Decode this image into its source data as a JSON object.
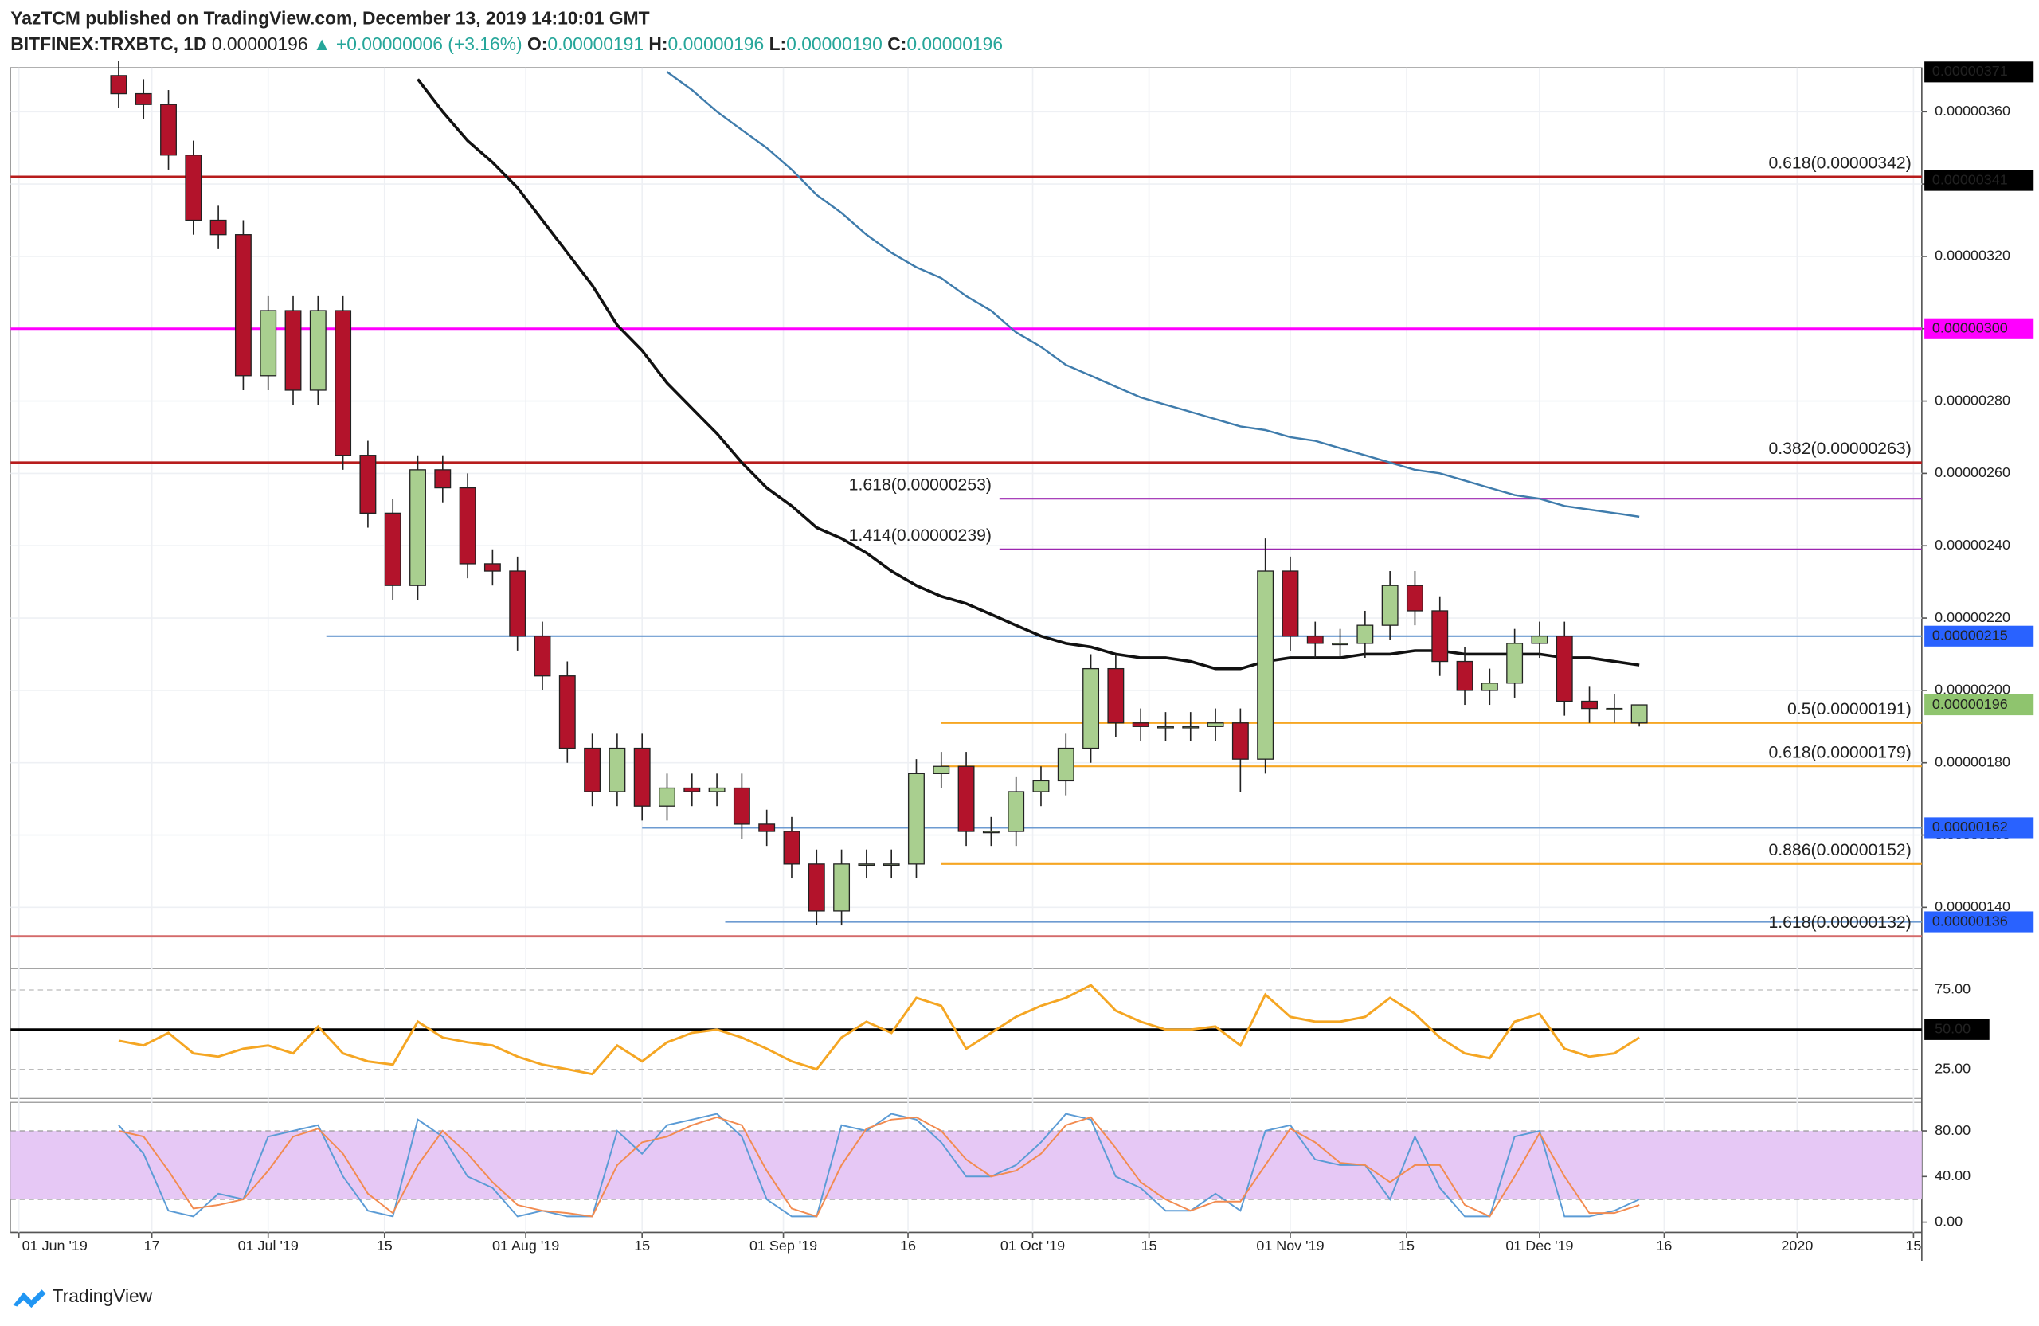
{
  "header": {
    "publisher": "YazTCM published on TradingView.com, December 13, 2019 14:10:01 GMT",
    "symbol": "BITFINEX:TRXBTC, 1D",
    "last": "0.00000196",
    "arrow": "▲",
    "change": "+0.00000006 (+3.16%)",
    "o_label": "O:",
    "o": "0.00000191",
    "h_label": "H:",
    "h": "0.00000196",
    "l_label": "L:",
    "l": "0.00000190",
    "c_label": "C:",
    "c": "0.00000196"
  },
  "footer": {
    "brand": "TradingView"
  },
  "chart_data": {
    "type": "candlestick",
    "up_color": "#a9cf8f",
    "down_color": "#b3132b",
    "x": [
      "2019-06-13",
      "2019-06-16",
      "2019-06-19",
      "2019-06-22",
      "2019-06-25",
      "2019-06-28",
      "2019-07-01",
      "2019-07-04",
      "2019-07-07",
      "2019-07-10",
      "2019-07-13",
      "2019-07-16",
      "2019-07-19",
      "2019-07-22",
      "2019-07-25",
      "2019-07-28",
      "2019-07-31",
      "2019-08-03",
      "2019-08-06",
      "2019-08-09",
      "2019-08-12",
      "2019-08-15",
      "2019-08-18",
      "2019-08-21",
      "2019-08-24",
      "2019-08-27",
      "2019-08-30",
      "2019-09-02",
      "2019-09-05",
      "2019-09-08",
      "2019-09-11",
      "2019-09-14",
      "2019-09-17",
      "2019-09-20",
      "2019-09-23",
      "2019-09-26",
      "2019-09-29",
      "2019-10-02",
      "2019-10-05",
      "2019-10-08",
      "2019-10-11",
      "2019-10-14",
      "2019-10-17",
      "2019-10-20",
      "2019-10-23",
      "2019-10-26",
      "2019-10-29",
      "2019-11-01",
      "2019-11-04",
      "2019-11-07",
      "2019-11-10",
      "2019-11-13",
      "2019-11-16",
      "2019-11-19",
      "2019-11-22",
      "2019-11-25",
      "2019-11-28",
      "2019-12-01",
      "2019-12-04",
      "2019-12-07",
      "2019-12-10",
      "2019-12-13"
    ],
    "open": [
      3.7e-06,
      3.65e-06,
      3.62e-06,
      3.48e-06,
      3.3e-06,
      3.26e-06,
      2.87e-06,
      3.05e-06,
      2.83e-06,
      3.05e-06,
      2.65e-06,
      2.49e-06,
      2.29e-06,
      2.61e-06,
      2.56e-06,
      2.35e-06,
      2.33e-06,
      2.15e-06,
      2.04e-06,
      1.84e-06,
      1.72e-06,
      1.84e-06,
      1.68e-06,
      1.73e-06,
      1.72e-06,
      1.73e-06,
      1.63e-06,
      1.61e-06,
      1.52e-06,
      1.39e-06,
      1.52e-06,
      1.52e-06,
      1.52e-06,
      1.77e-06,
      1.79e-06,
      1.61e-06,
      1.61e-06,
      1.72e-06,
      1.75e-06,
      1.84e-06,
      2.06e-06,
      1.91e-06,
      1.9e-06,
      1.9e-06,
      1.9e-06,
      1.91e-06,
      1.81e-06,
      2.33e-06,
      2.15e-06,
      2.13e-06,
      2.13e-06,
      2.18e-06,
      2.29e-06,
      2.22e-06,
      2.08e-06,
      2e-06,
      2.02e-06,
      2.13e-06,
      2.15e-06,
      1.97e-06,
      1.95e-06,
      1.91e-06
    ],
    "high": [
      3.74e-06,
      3.69e-06,
      3.66e-06,
      3.52e-06,
      3.34e-06,
      3.3e-06,
      3.09e-06,
      3.09e-06,
      3.09e-06,
      3.09e-06,
      2.69e-06,
      2.53e-06,
      2.65e-06,
      2.65e-06,
      2.6e-06,
      2.39e-06,
      2.37e-06,
      2.19e-06,
      2.08e-06,
      1.88e-06,
      1.88e-06,
      1.88e-06,
      1.77e-06,
      1.77e-06,
      1.77e-06,
      1.77e-06,
      1.67e-06,
      1.65e-06,
      1.56e-06,
      1.56e-06,
      1.56e-06,
      1.56e-06,
      1.81e-06,
      1.83e-06,
      1.83e-06,
      1.65e-06,
      1.76e-06,
      1.79e-06,
      1.88e-06,
      2.1e-06,
      2.1e-06,
      1.95e-06,
      1.94e-06,
      1.94e-06,
      1.95e-06,
      1.95e-06,
      2.42e-06,
      2.37e-06,
      2.19e-06,
      2.17e-06,
      2.22e-06,
      2.33e-06,
      2.33e-06,
      2.26e-06,
      2.12e-06,
      2.06e-06,
      2.17e-06,
      2.19e-06,
      2.19e-06,
      2.01e-06,
      1.99e-06,
      1.96e-06
    ],
    "low": [
      3.61e-06,
      3.58e-06,
      3.44e-06,
      3.26e-06,
      3.22e-06,
      2.83e-06,
      2.83e-06,
      2.79e-06,
      2.79e-06,
      2.61e-06,
      2.45e-06,
      2.25e-06,
      2.25e-06,
      2.52e-06,
      2.31e-06,
      2.29e-06,
      2.11e-06,
      2e-06,
      1.8e-06,
      1.68e-06,
      1.68e-06,
      1.64e-06,
      1.64e-06,
      1.68e-06,
      1.68e-06,
      1.59e-06,
      1.57e-06,
      1.48e-06,
      1.35e-06,
      1.35e-06,
      1.48e-06,
      1.48e-06,
      1.48e-06,
      1.73e-06,
      1.57e-06,
      1.57e-06,
      1.57e-06,
      1.68e-06,
      1.71e-06,
      1.8e-06,
      1.87e-06,
      1.86e-06,
      1.86e-06,
      1.86e-06,
      1.86e-06,
      1.72e-06,
      1.77e-06,
      2.11e-06,
      2.09e-06,
      2.09e-06,
      2.09e-06,
      2.14e-06,
      2.18e-06,
      2.04e-06,
      1.96e-06,
      1.96e-06,
      1.98e-06,
      2.09e-06,
      1.93e-06,
      1.91e-06,
      1.91e-06,
      1.9e-06
    ],
    "close": [
      3.65e-06,
      3.62e-06,
      3.48e-06,
      3.3e-06,
      3.26e-06,
      2.87e-06,
      3.05e-06,
      2.83e-06,
      3.05e-06,
      2.65e-06,
      2.49e-06,
      2.29e-06,
      2.61e-06,
      2.56e-06,
      2.35e-06,
      2.33e-06,
      2.15e-06,
      2.04e-06,
      1.84e-06,
      1.72e-06,
      1.84e-06,
      1.68e-06,
      1.73e-06,
      1.72e-06,
      1.73e-06,
      1.63e-06,
      1.61e-06,
      1.52e-06,
      1.39e-06,
      1.52e-06,
      1.52e-06,
      1.52e-06,
      1.77e-06,
      1.79e-06,
      1.61e-06,
      1.61e-06,
      1.72e-06,
      1.75e-06,
      1.84e-06,
      2.06e-06,
      1.91e-06,
      1.9e-06,
      1.9e-06,
      1.9e-06,
      1.91e-06,
      1.81e-06,
      2.33e-06,
      2.15e-06,
      2.13e-06,
      2.13e-06,
      2.18e-06,
      2.29e-06,
      2.22e-06,
      2.08e-06,
      2e-06,
      2.02e-06,
      2.13e-06,
      2.15e-06,
      1.97e-06,
      1.95e-06,
      1.95e-06,
      1.96e-06
    ],
    "moving_averages": [
      {
        "color": "#111111",
        "values": [
          null,
          null,
          null,
          null,
          null,
          null,
          null,
          null,
          null,
          null,
          null,
          null,
          3.69e-06,
          3.6e-06,
          3.52e-06,
          3.46e-06,
          3.39e-06,
          3.3e-06,
          3.21e-06,
          3.12e-06,
          3.01e-06,
          2.94e-06,
          2.85e-06,
          2.78e-06,
          2.71e-06,
          2.63e-06,
          2.56e-06,
          2.51e-06,
          2.45e-06,
          2.42e-06,
          2.38e-06,
          2.33e-06,
          2.29e-06,
          2.26e-06,
          2.24e-06,
          2.21e-06,
          2.18e-06,
          2.15e-06,
          2.13e-06,
          2.12e-06,
          2.1e-06,
          2.09e-06,
          2.09e-06,
          2.08e-06,
          2.06e-06,
          2.06e-06,
          2.08e-06,
          2.09e-06,
          2.09e-06,
          2.09e-06,
          2.1e-06,
          2.1e-06,
          2.11e-06,
          2.11e-06,
          2.1e-06,
          2.1e-06,
          2.1e-06,
          2.1e-06,
          2.09e-06,
          2.09e-06,
          2.08e-06,
          2.07e-06
        ]
      },
      {
        "color": "#3f7cac",
        "values": [
          null,
          null,
          null,
          null,
          null,
          null,
          null,
          null,
          null,
          null,
          null,
          null,
          null,
          null,
          null,
          null,
          null,
          null,
          null,
          null,
          null,
          null,
          3.71e-06,
          3.66e-06,
          3.6e-06,
          3.55e-06,
          3.5e-06,
          3.44e-06,
          3.37e-06,
          3.32e-06,
          3.26e-06,
          3.21e-06,
          3.17e-06,
          3.14e-06,
          3.09e-06,
          3.05e-06,
          2.99e-06,
          2.95e-06,
          2.9e-06,
          2.87e-06,
          2.84e-06,
          2.81e-06,
          2.79e-06,
          2.77e-06,
          2.75e-06,
          2.73e-06,
          2.72e-06,
          2.7e-06,
          2.69e-06,
          2.67e-06,
          2.65e-06,
          2.63e-06,
          2.61e-06,
          2.6e-06,
          2.58e-06,
          2.56e-06,
          2.54e-06,
          2.53e-06,
          2.51e-06,
          2.5e-06,
          2.49e-06,
          2.48e-06
        ]
      }
    ],
    "ylim": [
      1.231e-06,
      3.722e-06
    ],
    "yticks": [
      {
        "value": 3.6e-06,
        "label": "0.00000360"
      },
      {
        "value": 3.4e-06,
        "label": "0.00000340"
      },
      {
        "value": 3.2e-06,
        "label": "0.00000320"
      },
      {
        "value": 3e-06,
        "label": "0.00000300"
      },
      {
        "value": 2.8e-06,
        "label": "0.00000280"
      },
      {
        "value": 2.6e-06,
        "label": "0.00000260"
      },
      {
        "value": 2.4e-06,
        "label": "0.00000240"
      },
      {
        "value": 2.2e-06,
        "label": "0.00000220"
      },
      {
        "value": 2e-06,
        "label": "0.00000200"
      },
      {
        "value": 1.8e-06,
        "label": "0.00000180"
      },
      {
        "value": 1.6e-06,
        "label": "0.00000160"
      },
      {
        "value": 1.4e-06,
        "label": "0.00000140"
      }
    ],
    "xlim": [
      "2019-05-31",
      "2020-01-16"
    ],
    "xticks": [
      {
        "value": "2019-06-01",
        "label": "01 Jun '19"
      },
      {
        "value": "2019-06-17",
        "label": "17"
      },
      {
        "value": "2019-07-01",
        "label": "01 Jul '19"
      },
      {
        "value": "2019-07-15",
        "label": "15"
      },
      {
        "value": "2019-08-01",
        "label": "01 Aug '19"
      },
      {
        "value": "2019-08-15",
        "label": "15"
      },
      {
        "value": "2019-09-01",
        "label": "01 Sep '19"
      },
      {
        "value": "2019-09-16",
        "label": "16"
      },
      {
        "value": "2019-10-01",
        "label": "01 Oct '19"
      },
      {
        "value": "2019-10-15",
        "label": "15"
      },
      {
        "value": "2019-11-01",
        "label": "01 Nov '19"
      },
      {
        "value": "2019-11-15",
        "label": "15"
      },
      {
        "value": "2019-12-01",
        "label": "01 Dec '19"
      },
      {
        "value": "2019-12-16",
        "label": "16"
      },
      {
        "value": "2020-01-01",
        "label": "2020"
      },
      {
        "value": "2020-01-15",
        "label": "15"
      }
    ],
    "grid": true,
    "levels": [
      {
        "value": 3.42e-06,
        "color": "#b71c1c",
        "label": "0.618(0.00000342)",
        "label_color": "#c62828"
      },
      {
        "value": 3e-06,
        "color": "#ff00ff"
      },
      {
        "value": 2.63e-06,
        "color": "#b71c1c",
        "label": "0.382(0.00000263)",
        "label_color": "#c62828"
      },
      {
        "value": 2.53e-06,
        "color": "#9c27b0",
        "from": "2019-09-27",
        "label": "1.618(0.00000253)",
        "label_color": "#9c27b0",
        "label_side": "left"
      },
      {
        "value": 2.39e-06,
        "color": "#9c27b0",
        "from": "2019-09-27",
        "label": "1.414(0.00000239)",
        "label_color": "#9c27b0",
        "label_side": "left"
      },
      {
        "value": 2.15e-06,
        "color": "#6d9bd1",
        "from": "2019-07-08"
      },
      {
        "value": 1.91e-06,
        "color": "#f6a623",
        "from": "2019-09-20",
        "label": "0.5(0.00000191)",
        "label_color": "#f0a020"
      },
      {
        "value": 1.79e-06,
        "color": "#f6a623",
        "from": "2019-09-20",
        "label": "0.618(0.00000179)",
        "label_color": "#f0a020"
      },
      {
        "value": 1.62e-06,
        "color": "#6d9bd1",
        "from": "2019-08-15"
      },
      {
        "value": 1.52e-06,
        "color": "#f6a623",
        "from": "2019-09-20",
        "label": "0.886(0.00000152)",
        "label_color": "#f0a020"
      },
      {
        "value": 1.36e-06,
        "color": "#6d9bd1",
        "from": "2019-08-25"
      },
      {
        "value": 1.32e-06,
        "color": "#d46a6a",
        "label": "1.618(0.00000132)",
        "label_color": "#c62828"
      }
    ],
    "tags": [
      {
        "value": 3.71e-06,
        "label": "0.00000371",
        "bg": "#000000",
        "fg": "#ffffff"
      },
      {
        "value": 3.41e-06,
        "label": "0.00000341",
        "bg": "#000000",
        "fg": "#ffffff"
      },
      {
        "value": 3e-06,
        "label": "0.00000300",
        "bg": "#ff00ff",
        "fg": "#ffffff"
      },
      {
        "value": 2.15e-06,
        "label": "0.00000215",
        "bg": "#2962ff",
        "fg": "#ffffff"
      },
      {
        "value": 1.96e-06,
        "label": "0.00000196",
        "bg": "#8fc46e",
        "fg": "#000000"
      },
      {
        "value": 1.62e-06,
        "label": "0.00000162",
        "bg": "#2962ff",
        "fg": "#ffffff"
      },
      {
        "value": 1.36e-06,
        "label": "0.00000136",
        "bg": "#2962ff",
        "fg": "#ffffff"
      }
    ],
    "rsi": {
      "color": "#f5a623",
      "ylim": [
        6.6,
        88.5
      ],
      "yticks": [
        {
          "value": 75,
          "label": "75.00"
        },
        {
          "value": 50,
          "label": "50.00"
        },
        {
          "value": 25,
          "label": "25.00"
        }
      ],
      "midline": 50,
      "values": [
        43,
        40,
        48,
        35,
        33,
        38,
        40,
        35,
        52,
        35,
        30,
        28,
        55,
        45,
        42,
        40,
        33,
        28,
        25,
        22,
        40,
        30,
        42,
        48,
        50,
        45,
        38,
        30,
        25,
        45,
        55,
        48,
        70,
        65,
        38,
        48,
        58,
        65,
        70,
        78,
        62,
        55,
        50,
        50,
        52,
        40,
        72,
        58,
        55,
        55,
        58,
        70,
        60,
        45,
        35,
        32,
        55,
        60,
        38,
        33,
        35,
        45
      ]
    },
    "stoch_rsi": {
      "ylim": [
        -9,
        105
      ],
      "band": [
        20,
        80
      ],
      "band_color": "#e6c8f5",
      "yticks": [
        {
          "value": 80,
          "label": "80.00"
        },
        {
          "value": 40,
          "label": "40.00"
        },
        {
          "value": 0,
          "label": "0.00"
        }
      ],
      "series": [
        {
          "color": "#5b9bd5",
          "values": [
            85,
            60,
            10,
            5,
            25,
            20,
            75,
            80,
            85,
            40,
            10,
            5,
            90,
            75,
            40,
            30,
            5,
            10,
            5,
            5,
            80,
            60,
            85,
            90,
            95,
            75,
            20,
            5,
            5,
            85,
            80,
            95,
            90,
            70,
            40,
            40,
            50,
            70,
            95,
            90,
            40,
            30,
            10,
            10,
            25,
            10,
            80,
            85,
            55,
            50,
            50,
            20,
            75,
            30,
            5,
            5,
            75,
            80,
            5,
            5,
            10,
            20
          ]
        },
        {
          "color": "#f28b50",
          "values": [
            80,
            75,
            45,
            12,
            15,
            20,
            45,
            75,
            82,
            60,
            25,
            8,
            50,
            80,
            60,
            35,
            15,
            10,
            8,
            5,
            50,
            70,
            75,
            85,
            92,
            85,
            45,
            12,
            5,
            50,
            82,
            90,
            92,
            80,
            55,
            40,
            45,
            60,
            85,
            92,
            65,
            35,
            20,
            10,
            18,
            18,
            50,
            82,
            70,
            52,
            50,
            35,
            50,
            50,
            15,
            5,
            40,
            78,
            40,
            8,
            8,
            15
          ]
        }
      ]
    }
  }
}
